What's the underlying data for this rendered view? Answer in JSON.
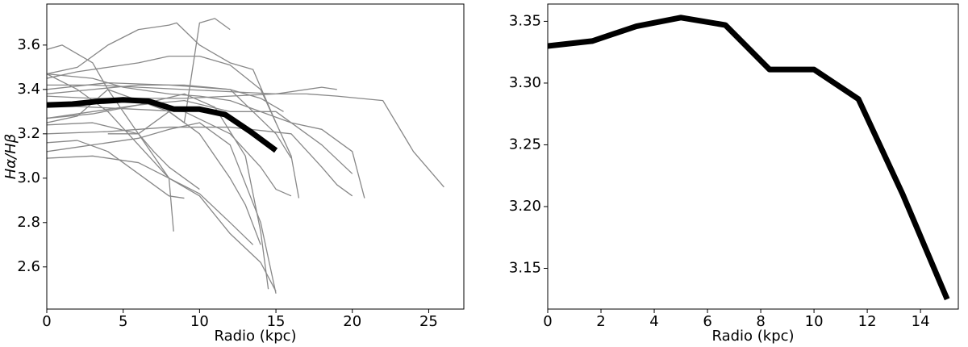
{
  "chart_data": [
    {
      "type": "line",
      "ylabel": "Hα/Hβ",
      "xlabel": "Radio (kpc)",
      "xlim": [
        0,
        27.3
      ],
      "ylim": [
        2.41,
        3.785
      ],
      "xticks": [
        0,
        5,
        10,
        15,
        20,
        25
      ],
      "yticks": [
        2.6,
        2.8,
        {
          "value": 3.0,
          "label": "3.0"
        },
        3.2,
        3.4,
        3.6
      ],
      "series": [
        {
          "color": "#888888",
          "x": [
            0,
            1,
            2,
            3,
            4,
            5,
            6,
            7,
            8,
            9,
            10
          ],
          "values": [
            3.58,
            3.6,
            3.56,
            3.52,
            3.4,
            3.3,
            3.2,
            3.12,
            3.05,
            3.0,
            2.95
          ]
        },
        {
          "color": "#888888",
          "x": [
            0,
            2,
            4,
            6,
            8,
            8.5,
            10,
            12,
            13.5,
            15
          ],
          "values": [
            3.47,
            3.5,
            3.6,
            3.67,
            3.69,
            3.7,
            3.6,
            3.52,
            3.49,
            3.25
          ]
        },
        {
          "color": "#888888",
          "x": [
            4,
            6,
            8,
            9,
            10,
            11,
            12
          ],
          "values": [
            3.2,
            3.2,
            3.3,
            3.25,
            3.7,
            3.72,
            3.67
          ]
        },
        {
          "color": "#888888",
          "x": [
            0,
            3,
            6,
            9,
            12,
            15,
            17,
            19,
            22,
            24,
            26
          ],
          "values": [
            3.42,
            3.42,
            3.41,
            3.4,
            3.39,
            3.38,
            3.38,
            3.37,
            3.35,
            3.12,
            2.96
          ]
        },
        {
          "color": "#888888",
          "x": [
            0,
            3,
            6,
            9,
            12,
            15,
            18,
            19
          ],
          "values": [
            3.37,
            3.36,
            3.36,
            3.36,
            3.37,
            3.38,
            3.41,
            3.4
          ]
        },
        {
          "color": "#888888",
          "x": [
            0,
            3,
            6,
            9,
            11,
            13,
            14,
            14.5
          ],
          "values": [
            3.27,
            3.29,
            3.33,
            3.38,
            3.32,
            3.1,
            2.76,
            2.5
          ]
        },
        {
          "color": "#888888",
          "x": [
            0,
            2,
            4,
            6,
            8,
            10,
            12,
            14,
            15
          ],
          "values": [
            3.12,
            3.14,
            3.16,
            3.18,
            3.22,
            3.25,
            3.15,
            2.8,
            2.48
          ]
        },
        {
          "color": "#888888",
          "x": [
            0,
            3,
            6,
            8,
            8.3
          ],
          "values": [
            3.24,
            3.25,
            3.2,
            3.0,
            2.76
          ]
        },
        {
          "color": "#888888",
          "x": [
            0,
            2,
            4,
            6,
            8,
            9
          ],
          "values": [
            3.16,
            3.17,
            3.12,
            3.02,
            2.92,
            2.91
          ]
        },
        {
          "color": "#888888",
          "x": [
            0,
            3,
            6,
            9,
            12,
            14,
            15,
            16
          ],
          "values": [
            3.33,
            3.32,
            3.31,
            3.3,
            3.2,
            3.05,
            2.95,
            2.92
          ]
        },
        {
          "color": "#888888",
          "x": [
            0,
            4,
            8,
            12,
            16,
            18,
            19,
            20
          ],
          "values": [
            3.2,
            3.21,
            3.23,
            3.23,
            3.2,
            3.05,
            2.97,
            2.92
          ]
        },
        {
          "color": "#888888",
          "x": [
            0,
            3,
            5,
            8,
            10,
            12,
            14,
            16,
            18,
            20,
            20.8
          ],
          "values": [
            3.47,
            3.45,
            3.41,
            3.38,
            3.37,
            3.35,
            3.3,
            3.25,
            3.22,
            3.12,
            2.91
          ]
        },
        {
          "color": "#888888",
          "x": [
            0,
            2,
            4,
            6,
            8,
            10,
            12,
            14,
            15,
            16,
            16.5
          ],
          "values": [
            3.45,
            3.48,
            3.5,
            3.52,
            3.55,
            3.55,
            3.51,
            3.4,
            3.25,
            3.1,
            2.91
          ]
        },
        {
          "color": "#888888",
          "x": [
            0,
            3,
            6,
            8,
            10,
            12,
            13.5
          ],
          "values": [
            3.09,
            3.1,
            3.07,
            3.0,
            2.93,
            2.8,
            2.7
          ]
        },
        {
          "color": "#888888",
          "x": [
            0,
            2,
            4,
            6,
            8,
            10,
            12,
            14,
            15
          ],
          "values": [
            3.47,
            3.4,
            3.3,
            3.15,
            3.0,
            2.92,
            2.75,
            2.62,
            2.49
          ]
        },
        {
          "color": "#888888",
          "x": [
            0,
            2,
            4,
            6,
            8,
            10,
            12,
            13,
            14
          ],
          "values": [
            3.25,
            3.28,
            3.4,
            3.35,
            3.3,
            3.2,
            3.0,
            2.88,
            2.7
          ]
        },
        {
          "color": "#888888",
          "x": [
            0,
            3,
            6,
            9,
            12,
            14,
            15.5
          ],
          "values": [
            3.38,
            3.4,
            3.42,
            3.42,
            3.4,
            3.36,
            3.3
          ]
        },
        {
          "color": "#888888",
          "x": [
            0,
            4,
            8,
            12,
            15,
            16
          ],
          "values": [
            3.4,
            3.43,
            3.42,
            3.4,
            3.2,
            3.09
          ]
        },
        {
          "color": "#888888",
          "x": [
            0,
            3,
            6,
            9,
            12,
            15,
            17,
            18,
            20
          ],
          "values": [
            3.27,
            3.3,
            3.33,
            3.35,
            3.3,
            3.3,
            3.2,
            3.15,
            3.02
          ]
        },
        {
          "color": "#000000",
          "width": 7,
          "x": [
            0,
            1.67,
            3.33,
            5,
            6.67,
            8.33,
            10,
            11.67,
            13.33,
            15
          ],
          "values": [
            3.33,
            3.334,
            3.346,
            3.353,
            3.347,
            3.311,
            3.311,
            3.287,
            3.21,
            3.125
          ]
        }
      ]
    },
    {
      "type": "line",
      "xlabel": "Radio (kpc)",
      "xlim": [
        0,
        15.42
      ],
      "ylim": [
        3.117,
        3.364
      ],
      "xticks": [
        0,
        2,
        4,
        6,
        8,
        10,
        12,
        14
      ],
      "yticks": [
        3.15,
        {
          "value": 3.2,
          "label": "3.20"
        },
        3.25,
        {
          "value": 3.3,
          "label": "3.30"
        },
        3.35
      ],
      "series": [
        {
          "color": "#000000",
          "width": 7,
          "x": [
            0,
            1.67,
            3.33,
            5,
            6.67,
            8.33,
            10,
            11.67,
            13.33,
            15
          ],
          "values": [
            3.33,
            3.334,
            3.346,
            3.353,
            3.347,
            3.311,
            3.311,
            3.287,
            3.21,
            3.125
          ]
        }
      ]
    }
  ]
}
